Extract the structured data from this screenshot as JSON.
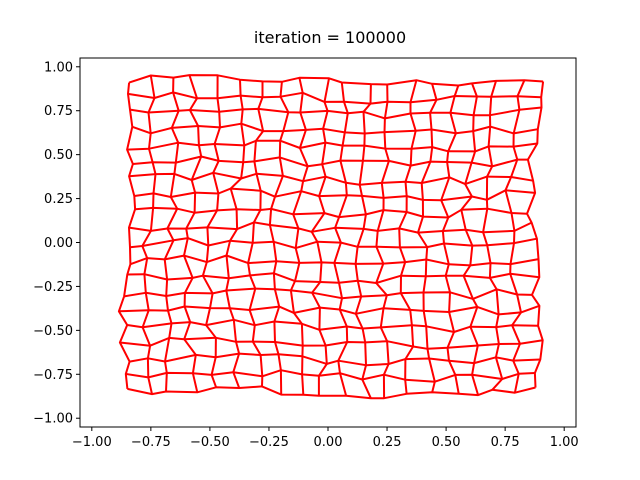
{
  "chart_data": {
    "type": "line",
    "title": "iteration = 100000",
    "xlabel": "",
    "ylabel": "",
    "xlim": [
      -1.05,
      1.05
    ],
    "ylim": [
      -1.05,
      1.05
    ],
    "xticks": [
      -1.0,
      -0.75,
      -0.5,
      -0.25,
      0.0,
      0.25,
      0.5,
      0.75,
      1.0
    ],
    "xtick_labels": [
      "−1.00",
      "−0.75",
      "−0.50",
      "−0.25",
      "0.00",
      "0.25",
      "0.50",
      "0.75",
      "1.00"
    ],
    "yticks": [
      -1.0,
      -0.75,
      -0.5,
      -0.25,
      0.0,
      0.25,
      0.5,
      0.75,
      1.0
    ],
    "ytick_labels": [
      "−1.00",
      "−0.75",
      "−0.50",
      "−0.25",
      "0.00",
      "0.25",
      "0.50",
      "0.75",
      "1.00"
    ],
    "grid": false,
    "line_color": "#ff0000",
    "mesh": {
      "description": "deformed 20x20 grid of nodes connected along rows and columns",
      "rows": 20,
      "cols": 20,
      "x_start": -0.85,
      "x_end": 0.88,
      "y_start": 0.92,
      "y_end": -0.85,
      "distortion_amplitude": 0.025
    }
  }
}
